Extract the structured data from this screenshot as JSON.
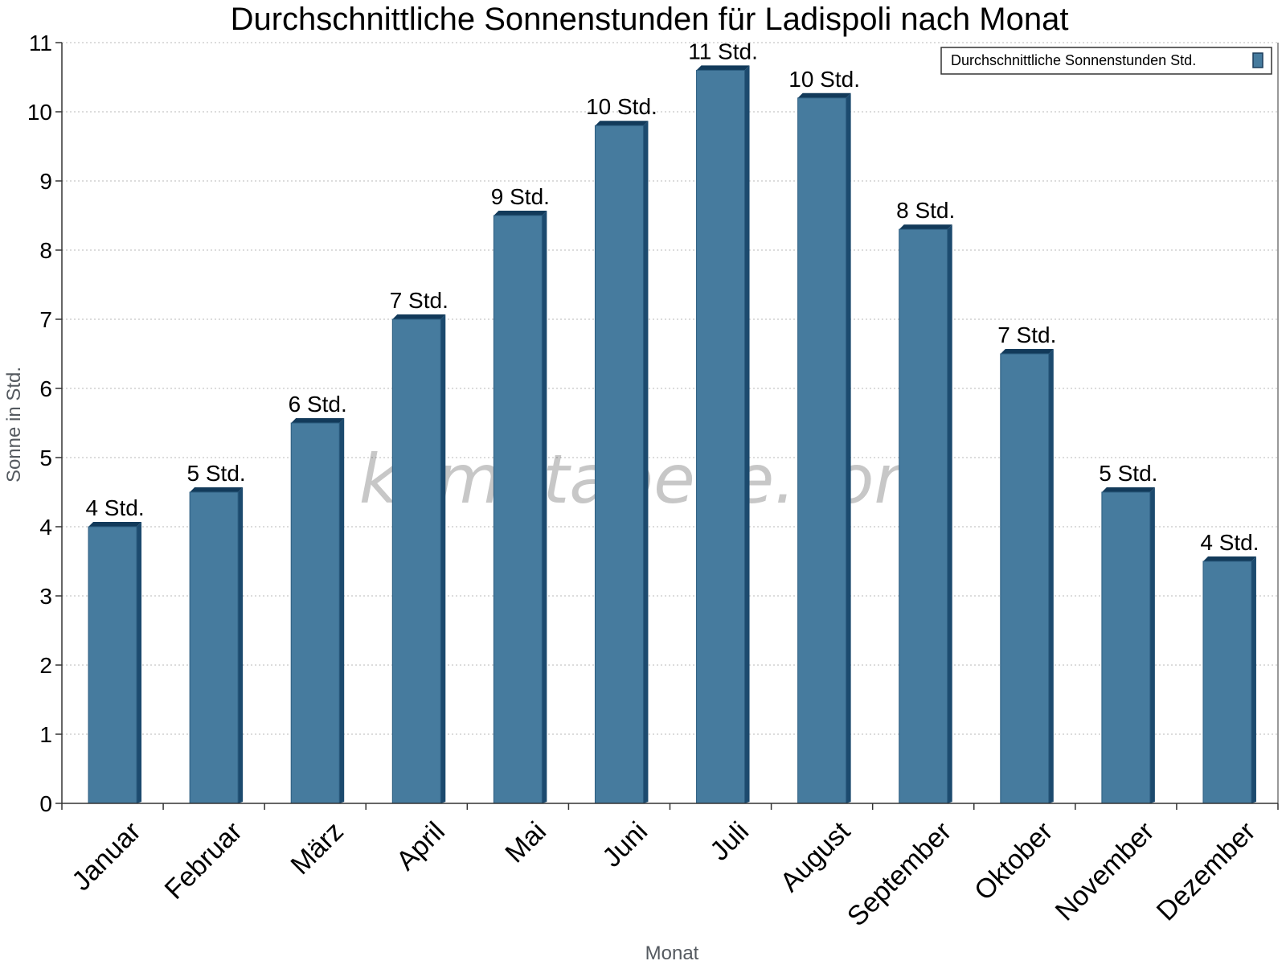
{
  "chart_data": {
    "type": "bar",
    "title": "Durchschnittliche Sonnenstunden für Ladispoli nach Monat",
    "xlabel": "Monat",
    "ylabel": "Sonne in Std.",
    "ylim": [
      0,
      11
    ],
    "yticks": [
      "0",
      "1",
      "2",
      "3",
      "4",
      "5",
      "6",
      "7",
      "8",
      "9",
      "10",
      "11"
    ],
    "grid": true,
    "legend_position": "top-right",
    "categories": [
      "Januar",
      "Februar",
      "März",
      "April",
      "Mai",
      "Juni",
      "Juli",
      "August",
      "September",
      "Oktober",
      "November",
      "Dezember"
    ],
    "series": [
      {
        "name": "Durchschnittliche Sonnenstunden Std.",
        "color": "#467b9e",
        "values": [
          4.0,
          4.5,
          5.5,
          7.0,
          8.5,
          9.8,
          10.6,
          10.2,
          8.3,
          6.5,
          4.5,
          3.5
        ],
        "labels": [
          "4 Std.",
          "5 Std.",
          "6 Std.",
          "7 Std.",
          "9 Std.",
          "10 Std.",
          "11 Std.",
          "10 Std.",
          "8 Std.",
          "7 Std.",
          "5 Std.",
          "4 Std."
        ]
      }
    ],
    "watermark": "klimatabelle.com"
  }
}
